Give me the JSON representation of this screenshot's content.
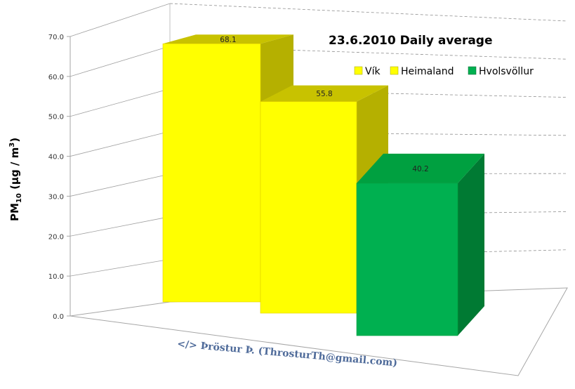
{
  "chart_data": {
    "type": "bar",
    "title": "23.6.2010 Daily average",
    "ylabel": "PM10 (µg / m³)",
    "ylabel_parts": {
      "main": "PM",
      "sub": "10",
      "unit": " (µg / m",
      "sup": "3",
      "close": ")"
    },
    "categories": [
      "Vík",
      "Heimaland",
      "Hvolsvöllur"
    ],
    "values": [
      68.1,
      55.8,
      40.2
    ],
    "value_labels": [
      "68.1",
      "55.8",
      "40.2"
    ],
    "ylim": [
      0,
      70
    ],
    "yticks": [
      "0.0",
      "10.0",
      "20.0",
      "30.0",
      "40.0",
      "50.0",
      "60.0",
      "70.0"
    ],
    "grid": true,
    "legend_position": "top-right",
    "series": [
      {
        "name": "Vík",
        "color": "#ffff00",
        "top_color": "#c8c200",
        "side_color": "#b5b000"
      },
      {
        "name": "Heimaland",
        "color": "#ffff00",
        "top_color": "#c8c200",
        "side_color": "#b5b000"
      },
      {
        "name": "Hvolsvöllur",
        "color": "#00b050",
        "top_color": "#00a040",
        "side_color": "#007a33"
      }
    ]
  },
  "credit": "</> Þröstur Þ. (ThrosturTh@gmail.com)"
}
